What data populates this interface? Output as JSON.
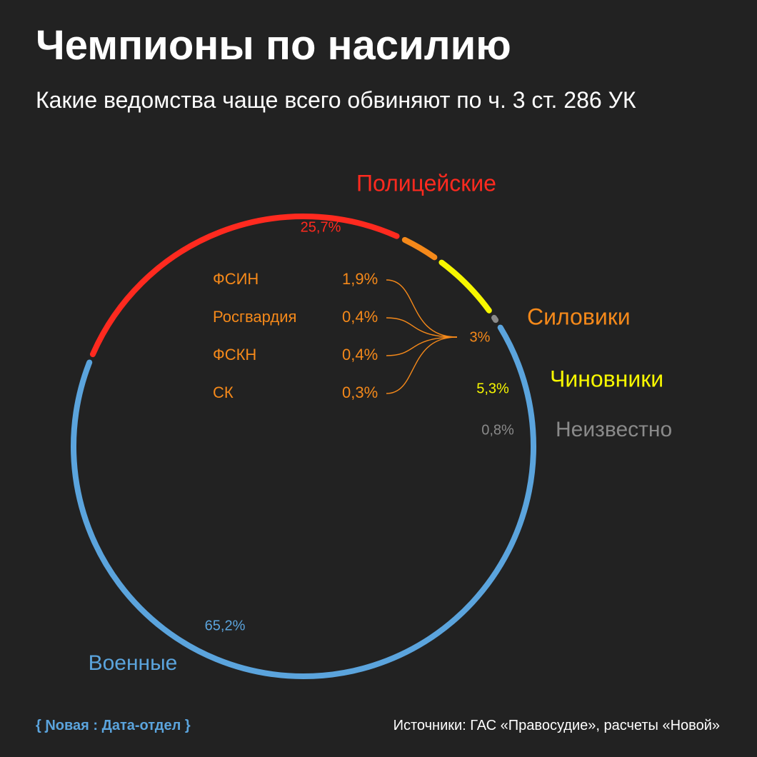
{
  "title": "Чемпионы по насилию",
  "subtitle": "Какие ведомства чаще всего обвиняют по ч. 3 ст. 286 УК",
  "colors": {
    "background": "#222222",
    "police": "#ff2a1f",
    "siloviki": "#f5891a",
    "officials": "#f7f700",
    "unknown": "#8a8a8a",
    "military": "#5ba4dd"
  },
  "chart_data": {
    "type": "pie",
    "style": "ring",
    "slices": [
      {
        "label": "Полицейские",
        "value": 25.7,
        "value_label": "25,7%",
        "color": "#ff2a1f"
      },
      {
        "label": "Силовики",
        "value": 3.0,
        "value_label": "3%",
        "color": "#f5891a"
      },
      {
        "label": "Чиновники",
        "value": 5.3,
        "value_label": "5,3%",
        "color": "#f7f700"
      },
      {
        "label": "Неизвестно",
        "value": 0.8,
        "value_label": "0,8%",
        "color": "#8a8a8a"
      },
      {
        "label": "Военные",
        "value": 65.2,
        "value_label": "65,2%",
        "color": "#5ba4dd"
      }
    ],
    "breakdown": {
      "parent": "Силовики",
      "items": [
        {
          "label": "ФСИН",
          "value": 1.9,
          "value_label": "1,9%"
        },
        {
          "label": "Росгвардия",
          "value": 0.4,
          "value_label": "0,4%"
        },
        {
          "label": "ФСКН",
          "value": 0.4,
          "value_label": "0,4%"
        },
        {
          "label": "СК",
          "value": 0.3,
          "value_label": "0,3%"
        }
      ]
    }
  },
  "footer": {
    "logo": "{ Ɲовая : Дата-отдел }",
    "sources": "Источники: ГАС «Правосудие», расчеты «Новой»"
  }
}
